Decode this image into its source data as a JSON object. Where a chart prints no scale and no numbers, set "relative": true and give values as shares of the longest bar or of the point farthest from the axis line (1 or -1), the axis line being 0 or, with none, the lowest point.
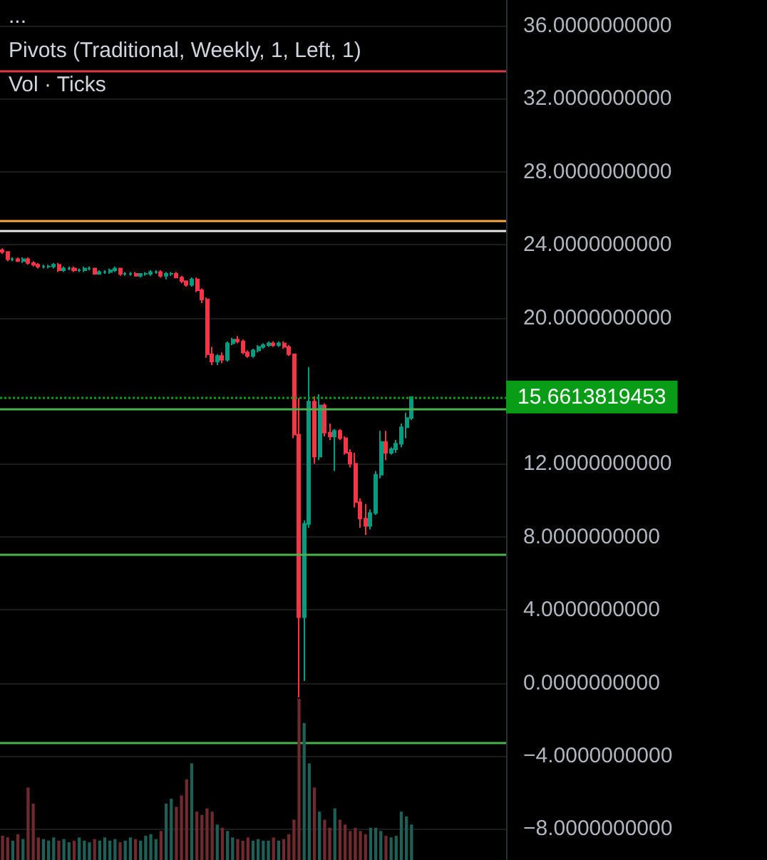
{
  "chart_data": [
    {
      "type": "candlestick",
      "tick_labels": "y",
      "grid": "y",
      "annotations": [
        "...",
        "Pivots (Traditional, Weekly, 1, Left, 1)",
        "Vol · Ticks"
      ],
      "ylim": [
        -9.7,
        37.4
      ],
      "yticks": [
        {
          "value": 36,
          "label": "36.0000000000"
        },
        {
          "value": 32,
          "label": "32.0000000000"
        },
        {
          "value": 28,
          "label": "28.0000000000"
        },
        {
          "value": 24,
          "label": "24.0000000000"
        },
        {
          "value": 20,
          "label": "20.0000000000"
        },
        {
          "value": 12,
          "label": "12.0000000000"
        },
        {
          "value": 8,
          "label": "8.0000000000"
        },
        {
          "value": 4,
          "label": "4.0000000000"
        },
        {
          "value": 0,
          "label": "0.0000000000"
        },
        {
          "value": -4,
          "label": "−4.0000000000"
        },
        {
          "value": -8,
          "label": "−8.0000000000"
        }
      ],
      "ref_lines": [
        {
          "axis": "y",
          "value": 33.5,
          "color": "#d83a44"
        },
        {
          "axis": "y",
          "value": 25.3,
          "color": "#f5a742"
        },
        {
          "axis": "y",
          "value": 24.8,
          "color": "#e8e8e8"
        },
        {
          "axis": "y",
          "value": 15.0,
          "color": "#4caf50"
        },
        {
          "axis": "y",
          "value": 7.0,
          "color": "#4caf50"
        },
        {
          "axis": "y",
          "value": -3.3,
          "color": "#4caf50"
        },
        {
          "axis": "y",
          "value": 15.6613819453,
          "label": "15.6613819453",
          "color": "#089c17",
          "line_style": "dotted"
        }
      ],
      "categories": [
        null,
        null,
        null,
        null,
        null,
        null,
        null,
        null,
        null,
        null,
        null,
        null,
        null,
        null,
        null,
        null,
        null,
        null,
        null,
        null,
        null,
        null,
        null,
        null,
        null,
        null,
        null,
        null,
        null,
        null,
        null,
        null,
        null,
        null,
        null,
        null,
        null,
        null,
        null,
        null,
        null,
        null,
        null,
        null,
        null,
        null,
        null,
        null,
        null,
        null,
        null,
        null,
        null,
        null,
        null,
        null,
        null,
        null,
        null,
        null,
        null,
        null,
        null,
        null,
        null,
        null,
        null,
        null,
        null,
        null,
        null,
        null,
        null,
        null,
        null,
        null,
        null,
        null,
        null,
        null,
        null,
        null,
        null,
        null,
        null,
        null,
        null,
        null,
        null,
        null,
        null,
        null,
        null,
        null,
        null,
        null,
        null,
        null,
        null
      ],
      "ohlc": [
        [
          23.7,
          23.8,
          23.5,
          23.6
        ],
        [
          23.6,
          23.6,
          23.1,
          23.2
        ],
        [
          23.2,
          23.3,
          23.1,
          23.2
        ],
        [
          23.2,
          23.3,
          23.1,
          23.1
        ],
        [
          23.1,
          23.3,
          23.0,
          23.2
        ],
        [
          23.2,
          23.3,
          22.9,
          23.0
        ],
        [
          23.0,
          23.1,
          22.8,
          22.9
        ],
        [
          22.9,
          23.0,
          22.7,
          22.8
        ],
        [
          22.8,
          22.9,
          22.7,
          22.8
        ],
        [
          22.8,
          22.9,
          22.7,
          22.8
        ],
        [
          22.8,
          23.0,
          22.7,
          22.9
        ],
        [
          22.9,
          23.0,
          22.5,
          22.6
        ],
        [
          22.6,
          22.8,
          22.5,
          22.7
        ],
        [
          22.7,
          22.8,
          22.6,
          22.7
        ],
        [
          22.7,
          22.8,
          22.5,
          22.6
        ],
        [
          22.6,
          22.7,
          22.5,
          22.6
        ],
        [
          22.6,
          22.8,
          22.5,
          22.7
        ],
        [
          22.7,
          22.8,
          22.6,
          22.7
        ],
        [
          22.7,
          22.7,
          22.4,
          22.4
        ],
        [
          22.4,
          22.6,
          22.4,
          22.5
        ],
        [
          22.5,
          22.6,
          22.4,
          22.5
        ],
        [
          22.5,
          22.7,
          22.4,
          22.6
        ],
        [
          22.6,
          22.8,
          22.5,
          22.7
        ],
        [
          22.7,
          22.7,
          22.3,
          22.4
        ],
        [
          22.4,
          22.5,
          22.3,
          22.4
        ],
        [
          22.4,
          22.5,
          22.3,
          22.4
        ],
        [
          22.4,
          22.5,
          22.3,
          22.3
        ],
        [
          22.3,
          22.4,
          22.2,
          22.4
        ],
        [
          22.4,
          22.5,
          22.3,
          22.4
        ],
        [
          22.4,
          22.6,
          22.3,
          22.5
        ],
        [
          22.5,
          22.6,
          22.4,
          22.5
        ],
        [
          22.5,
          22.6,
          22.2,
          22.3
        ],
        [
          22.3,
          22.5,
          22.1,
          22.4
        ],
        [
          22.4,
          22.5,
          22.3,
          22.4
        ],
        [
          22.4,
          22.5,
          22.2,
          22.2
        ],
        [
          22.2,
          22.3,
          21.9,
          22.0
        ],
        [
          22.0,
          22.0,
          21.7,
          21.8
        ],
        [
          21.8,
          22.2,
          21.7,
          22.1
        ],
        [
          22.1,
          22.2,
          21.4,
          21.5
        ],
        [
          21.5,
          21.6,
          20.8,
          21.0
        ],
        [
          21.0,
          21.1,
          17.8,
          18.0
        ],
        [
          18.0,
          18.4,
          17.4,
          17.6
        ],
        [
          17.6,
          18.0,
          17.4,
          17.9
        ],
        [
          17.9,
          18.1,
          17.5,
          17.7
        ],
        [
          17.7,
          18.7,
          17.6,
          18.6
        ],
        [
          18.6,
          18.9,
          18.5,
          18.8
        ],
        [
          18.8,
          19.0,
          18.6,
          18.7
        ],
        [
          18.7,
          18.8,
          18.0,
          18.1
        ],
        [
          18.1,
          18.2,
          17.8,
          17.9
        ],
        [
          17.9,
          18.3,
          17.8,
          18.2
        ],
        [
          18.2,
          18.5,
          18.1,
          18.4
        ],
        [
          18.4,
          18.6,
          18.3,
          18.5
        ],
        [
          18.5,
          18.7,
          18.4,
          18.6
        ],
        [
          18.6,
          18.7,
          18.4,
          18.5
        ],
        [
          18.5,
          18.7,
          18.4,
          18.6
        ],
        [
          18.6,
          18.7,
          18.3,
          18.4
        ],
        [
          18.4,
          18.5,
          17.9,
          18.0
        ],
        [
          18.0,
          18.0,
          13.4,
          13.6
        ],
        [
          13.6,
          15.6,
          -0.8,
          3.6
        ],
        [
          3.6,
          8.9,
          0.1,
          8.7
        ],
        [
          8.7,
          17.3,
          8.5,
          15.4
        ],
        [
          15.4,
          15.7,
          12.0,
          12.4
        ],
        [
          12.4,
          15.8,
          12.2,
          15.2
        ],
        [
          15.2,
          15.3,
          13.5,
          13.7
        ],
        [
          13.7,
          14.2,
          13.3,
          13.5
        ],
        [
          13.5,
          13.9,
          11.6,
          13.8
        ],
        [
          13.8,
          13.9,
          13.3,
          13.4
        ],
        [
          13.4,
          13.5,
          12.5,
          12.6
        ],
        [
          12.6,
          12.8,
          11.8,
          12.0
        ],
        [
          12.0,
          12.6,
          9.6,
          9.9
        ],
        [
          9.9,
          10.1,
          8.5,
          9.0
        ],
        [
          9.0,
          9.8,
          8.1,
          8.6
        ],
        [
          8.6,
          9.5,
          8.4,
          9.3
        ],
        [
          9.3,
          11.6,
          9.2,
          11.4
        ],
        [
          11.4,
          13.8,
          11.2,
          13.2
        ],
        [
          13.2,
          13.8,
          12.2,
          12.6
        ],
        [
          12.6,
          12.9,
          12.5,
          12.8
        ],
        [
          12.8,
          13.3,
          12.6,
          13.1
        ],
        [
          13.1,
          14.2,
          12.9,
          14.0
        ],
        [
          14.0,
          14.8,
          13.4,
          14.5
        ],
        [
          14.5,
          15.7,
          14.4,
          15.66
        ],
        null,
        null,
        null,
        null,
        null,
        null,
        null,
        null,
        null,
        null,
        null,
        null,
        null,
        null,
        null,
        null,
        null,
        null
      ]
    },
    {
      "type": "bar",
      "relative": true,
      "tick_labels": false,
      "categories": [
        null,
        null,
        null,
        null,
        null,
        null,
        null,
        null,
        null,
        null,
        null,
        null,
        null,
        null,
        null,
        null,
        null,
        null,
        null,
        null,
        null,
        null,
        null,
        null,
        null,
        null,
        null,
        null,
        null,
        null,
        null,
        null,
        null,
        null,
        null,
        null,
        null,
        null,
        null,
        null,
        null,
        null,
        null,
        null,
        null,
        null,
        null,
        null,
        null,
        null,
        null,
        null,
        null,
        null,
        null,
        null,
        null,
        null,
        null,
        null,
        null,
        null,
        null,
        null,
        null,
        null,
        null,
        null,
        null,
        null,
        null,
        null,
        null,
        null,
        null,
        null,
        null,
        null,
        null,
        null,
        null,
        null,
        null,
        null,
        null,
        null,
        null,
        null,
        null,
        null,
        null,
        null,
        null,
        null,
        null,
        null,
        null,
        null,
        null
      ],
      "values": [
        0.15,
        0.14,
        0.12,
        0.16,
        0.13,
        0.45,
        0.35,
        0.14,
        0.13,
        0.12,
        0.14,
        0.12,
        0.13,
        0.11,
        0.12,
        0.14,
        0.12,
        0.11,
        0.13,
        0.12,
        0.14,
        0.12,
        0.13,
        0.11,
        0.12,
        0.14,
        0.13,
        0.12,
        0.15,
        0.16,
        0.13,
        0.18,
        0.35,
        0.38,
        0.33,
        0.4,
        0.5,
        0.6,
        0.3,
        0.28,
        0.32,
        0.3,
        0.22,
        0.2,
        0.18,
        0.14,
        0.13,
        0.12,
        0.14,
        0.12,
        0.13,
        0.12,
        0.12,
        0.14,
        0.12,
        0.13,
        0.16,
        0.25,
        1.0,
        0.85,
        0.6,
        0.45,
        0.3,
        0.25,
        0.2,
        0.32,
        0.25,
        0.22,
        0.18,
        0.2,
        0.18,
        0.16,
        0.2,
        0.2,
        0.18,
        0.15,
        0.14,
        0.15,
        0.3,
        0.27,
        0.22,
        null,
        null,
        null,
        null,
        null,
        null,
        null,
        null,
        null,
        null,
        null,
        null,
        null,
        null,
        null,
        null,
        null,
        null
      ],
      "colors": [
        "#6e2a2f",
        "#6e2a2f",
        "#1d5e56",
        "#6e2a2f",
        "#1d5e56",
        "#6e2a2f",
        "#6e2a2f",
        "#6e2a2f",
        "#1d5e56",
        "#1d5e56",
        "#1d5e56",
        "#6e2a2f",
        "#1d5e56",
        "#1d5e56",
        "#6e2a2f",
        "#1d5e56",
        "#1d5e56",
        "#1d5e56",
        "#6e2a2f",
        "#1d5e56",
        "#1d5e56",
        "#1d5e56",
        "#1d5e56",
        "#6e2a2f",
        "#1d5e56",
        "#1d5e56",
        "#6e2a2f",
        "#1d5e56",
        "#1d5e56",
        "#1d5e56",
        "#1d5e56",
        "#6e2a2f",
        "#1d5e56",
        "#1d5e56",
        "#6e2a2f",
        "#6e2a2f",
        "#6e2a2f",
        "#1d5e56",
        "#6e2a2f",
        "#6e2a2f",
        "#6e2a2f",
        "#6e2a2f",
        "#1d5e56",
        "#6e2a2f",
        "#1d5e56",
        "#1d5e56",
        "#6e2a2f",
        "#6e2a2f",
        "#6e2a2f",
        "#1d5e56",
        "#1d5e56",
        "#1d5e56",
        "#1d5e56",
        "#6e2a2f",
        "#1d5e56",
        "#6e2a2f",
        "#6e2a2f",
        "#6e2a2f",
        "#6e2a2f",
        "#1d5e56",
        "#1d5e56",
        "#6e2a2f",
        "#1d5e56",
        "#6e2a2f",
        "#6e2a2f",
        "#1d5e56",
        "#6e2a2f",
        "#6e2a2f",
        "#6e2a2f",
        "#6e2a2f",
        "#6e2a2f",
        "#6e2a2f",
        "#1d5e56",
        "#1d5e56",
        "#1d5e56",
        "#6e2a2f",
        "#1d5e56",
        "#1d5e56",
        "#1d5e56",
        "#1d5e56",
        "#1d5e56",
        null,
        null,
        null,
        null,
        null,
        null,
        null,
        null,
        null,
        null,
        null,
        null,
        null,
        null,
        null,
        null,
        null,
        null
      ]
    }
  ]
}
